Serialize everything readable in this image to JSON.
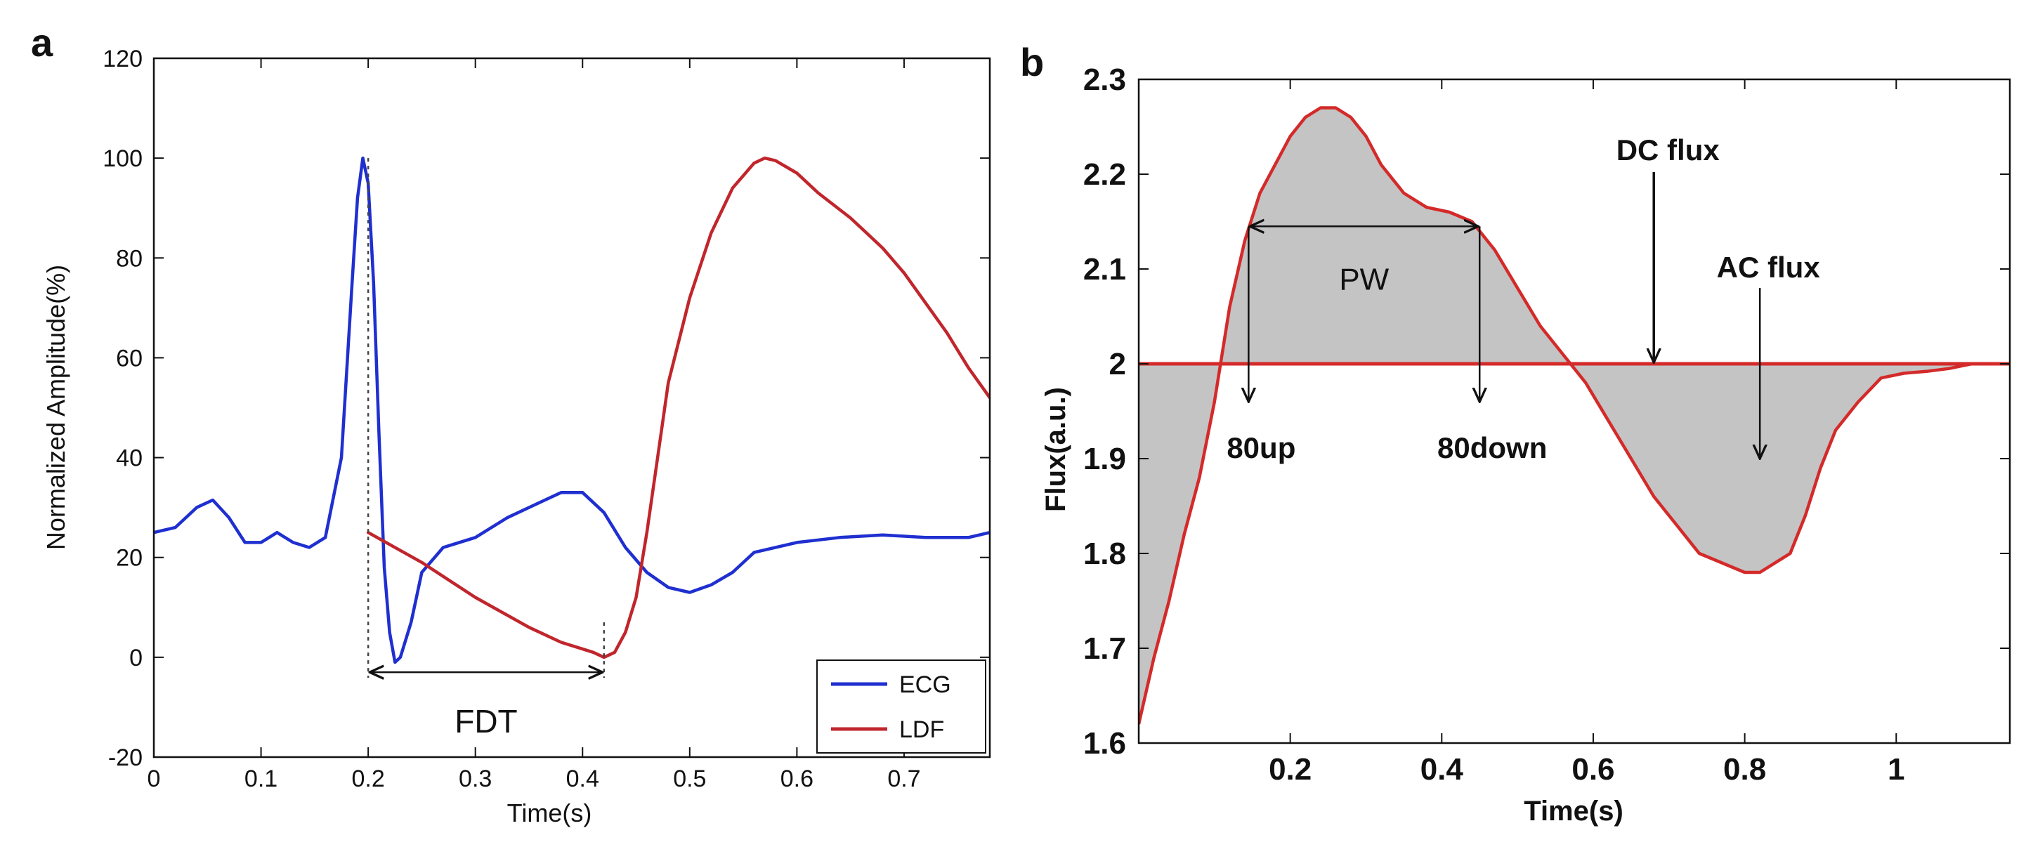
{
  "chart_data": [
    {
      "panel_label": "a",
      "type": "line",
      "title": "",
      "xlabel": "Time(s)",
      "ylabel": "Normalized Amplitude(%)",
      "xlim": [
        0,
        0.78
      ],
      "ylim": [
        -20,
        120
      ],
      "xticks": [
        "0",
        "0.1",
        "0.2",
        "0.3",
        "0.4",
        "0.5",
        "0.6",
        "0.7"
      ],
      "yticks": [
        "-20",
        "0",
        "20",
        "40",
        "60",
        "80",
        "100",
        "120"
      ],
      "grid": false,
      "legend_position": "bottom-right",
      "series": [
        {
          "name": "ECG",
          "color": "#1f2fd0",
          "x": [
            0,
            0.02,
            0.04,
            0.055,
            0.07,
            0.085,
            0.1,
            0.115,
            0.13,
            0.145,
            0.16,
            0.175,
            0.185,
            0.19,
            0.195,
            0.2,
            0.205,
            0.21,
            0.215,
            0.22,
            0.225,
            0.23,
            0.24,
            0.25,
            0.27,
            0.3,
            0.33,
            0.36,
            0.38,
            0.4,
            0.42,
            0.44,
            0.46,
            0.48,
            0.5,
            0.52,
            0.54,
            0.56,
            0.6,
            0.64,
            0.68,
            0.72,
            0.76,
            0.78
          ],
          "y": [
            25,
            26,
            30,
            31.5,
            28,
            23,
            23,
            25,
            23,
            22,
            24,
            40,
            75,
            92,
            100,
            95,
            75,
            45,
            18,
            5,
            -1,
            0,
            7,
            17,
            22,
            24,
            28,
            31,
            33,
            33,
            29,
            22,
            17,
            14,
            13,
            14.5,
            17,
            21,
            23,
            24,
            24.5,
            24,
            24,
            25
          ]
        },
        {
          "name": "LDF",
          "color": "#c0262c",
          "x": [
            0.2,
            0.25,
            0.3,
            0.35,
            0.38,
            0.41,
            0.42,
            0.43,
            0.44,
            0.45,
            0.46,
            0.47,
            0.48,
            0.5,
            0.52,
            0.54,
            0.56,
            0.57,
            0.58,
            0.6,
            0.62,
            0.65,
            0.68,
            0.7,
            0.72,
            0.74,
            0.76,
            0.78
          ],
          "y": [
            25,
            19,
            12,
            6,
            3,
            1,
            0,
            1,
            5,
            12,
            25,
            40,
            55,
            72,
            85,
            94,
            99,
            100,
            99.5,
            97,
            93,
            88,
            82,
            77,
            71,
            65,
            58,
            52
          ]
        }
      ],
      "annotations": [
        {
          "text": "FDT",
          "from_x": 0.2,
          "to_x": 0.42,
          "y": -3
        }
      ]
    },
    {
      "panel_label": "b",
      "type": "area",
      "title": "",
      "xlabel": "Time(s)",
      "ylabel": "Flux(a.u.)",
      "xlim": [
        0,
        1.15
      ],
      "ylim": [
        1.6,
        2.3
      ],
      "xticks": [
        "0.2",
        "0.4",
        "0.6",
        "0.8",
        "1"
      ],
      "yticks": [
        "1.6",
        "1.7",
        "1.8",
        "1.9",
        "2",
        "2.1",
        "2.2",
        "2.3"
      ],
      "grid": false,
      "baseline": 2.0,
      "series": [
        {
          "name": "",
          "color": "#d42a2a",
          "fill_color": "#c4c4c4",
          "x": [
            0,
            0.02,
            0.04,
            0.06,
            0.08,
            0.1,
            0.12,
            0.14,
            0.16,
            0.18,
            0.2,
            0.22,
            0.24,
            0.26,
            0.28,
            0.3,
            0.32,
            0.35,
            0.38,
            0.41,
            0.44,
            0.47,
            0.5,
            0.53,
            0.56,
            0.59,
            0.62,
            0.65,
            0.68,
            0.71,
            0.74,
            0.77,
            0.8,
            0.82,
            0.84,
            0.86,
            0.88,
            0.9,
            0.92,
            0.95,
            0.98,
            1.01,
            1.04,
            1.07,
            1.1,
            1.13,
            1.15
          ],
          "y": [
            1.62,
            1.69,
            1.75,
            1.82,
            1.88,
            1.96,
            2.06,
            2.13,
            2.18,
            2.21,
            2.24,
            2.26,
            2.27,
            2.27,
            2.26,
            2.24,
            2.21,
            2.18,
            2.165,
            2.16,
            2.15,
            2.12,
            2.08,
            2.04,
            2.01,
            1.98,
            1.94,
            1.9,
            1.86,
            1.83,
            1.8,
            1.79,
            1.78,
            1.78,
            1.79,
            1.8,
            1.84,
            1.89,
            1.93,
            1.96,
            1.985,
            1.99,
            1.992,
            1.995,
            2.0,
            2.0,
            2.0
          ]
        }
      ],
      "annotations": [
        {
          "text": "PW",
          "from_x": 0.145,
          "to_x": 0.45,
          "y": 2.145
        },
        {
          "text": "80up",
          "x": 0.145,
          "from_y": 2.145,
          "to_y": 1.96
        },
        {
          "text": "80down",
          "x": 0.45,
          "from_y": 2.145,
          "to_y": 1.96
        },
        {
          "text": "DC flux",
          "x": 0.68,
          "to_y": 2.0
        },
        {
          "text": "AC flux",
          "x": 0.82,
          "to_y": 1.9
        }
      ]
    }
  ]
}
